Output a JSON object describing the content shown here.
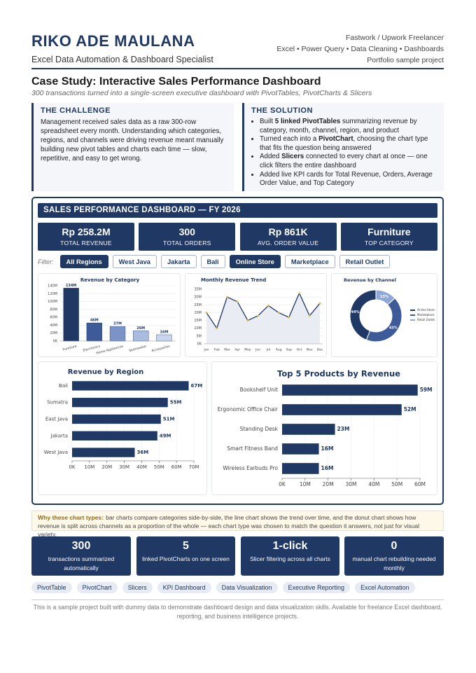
{
  "header": {
    "name": "RIKO ADE MAULANA",
    "tagline": "Excel Data Automation & Dashboard Specialist",
    "meta": [
      "Fastwork / Upwork Freelancer",
      "Excel • Power Query • Data Cleaning • Dashboards",
      "Portfolio sample project"
    ]
  },
  "case_study": {
    "title": "Case Study: Interactive Sales Performance Dashboard",
    "subtitle": "300 transactions turned into a single-screen executive dashboard with PivotTables, PivotCharts & Slicers"
  },
  "challenge": {
    "heading": "THE CHALLENGE",
    "text": "Management received sales data as a raw 300-row spreadsheet every month. Understanding which categories, regions, and channels were driving revenue meant manually building new pivot tables and charts each time — slow, repetitive, and easy to get wrong."
  },
  "solution": {
    "heading": "THE SOLUTION",
    "bullets": [
      [
        "Built ",
        "5 linked PivotTables",
        " summarizing revenue by category, month, channel, region, and product"
      ],
      [
        "Turned each into a ",
        "PivotChart",
        ", choosing the chart type that fits the question being answered"
      ],
      [
        "Added ",
        "Slicers",
        " connected to every chart at once — one click filters the entire dashboard"
      ],
      [
        "Added live KPI cards for Total Revenue, Orders, Average Order Value, and Top Category"
      ]
    ]
  },
  "dashboard": {
    "title": "SALES PERFORMANCE DASHBOARD — FY 2026",
    "kpis": [
      {
        "value": "Rp 258.2M",
        "label": "TOTAL REVENUE"
      },
      {
        "value": "300",
        "label": "TOTAL ORDERS"
      },
      {
        "value": "Rp 861K",
        "label": "AVG. ORDER VALUE"
      },
      {
        "value": "Furniture",
        "label": "TOP CATEGORY"
      }
    ],
    "filter_label": "Filter:",
    "filters": [
      {
        "label": "All Regions",
        "active": true
      },
      {
        "label": "West Java",
        "active": false
      },
      {
        "label": "Jakarta",
        "active": false
      },
      {
        "label": "Bali",
        "active": false
      },
      {
        "label": "Online Store",
        "active": true
      },
      {
        "label": "Marketplace",
        "active": false
      },
      {
        "label": "Retail Outlet",
        "active": false
      }
    ]
  },
  "chart_data": [
    {
      "type": "bar",
      "horizontal": false,
      "title": "Revenue by Category",
      "categories": [
        "Furniture",
        "Electronics",
        "Home Appliances",
        "Sportswear",
        "Accessories"
      ],
      "values": [
        134,
        46,
        37,
        26,
        16
      ],
      "value_labels": [
        "134M",
        "46M",
        "37M",
        "26M",
        "16M"
      ],
      "colors": [
        "#1f3864",
        "#3d5a99",
        "#7b93c6",
        "#a9bbdf",
        "#c9d5ee"
      ],
      "ylim": [
        0,
        140
      ],
      "yticks": [
        {
          "value": 0,
          "label": "0K"
        },
        {
          "value": 20,
          "label": "20M"
        },
        {
          "value": 40,
          "label": "40M"
        },
        {
          "value": 60,
          "label": "60M"
        },
        {
          "value": 80,
          "label": "80M"
        },
        {
          "value": 100,
          "label": "100M"
        },
        {
          "value": 120,
          "label": "120M"
        },
        {
          "value": 140,
          "label": "140M"
        }
      ],
      "grid": true
    },
    {
      "type": "line",
      "title": "Monthly Revenue Trend",
      "categories": [
        "Jan",
        "Feb",
        "Mar",
        "Apr",
        "May",
        "Jun",
        "Jul",
        "Aug",
        "Sep",
        "Oct",
        "Nov",
        "Dec"
      ],
      "values": [
        20,
        10,
        30,
        27,
        15,
        18,
        24.5,
        20,
        17,
        32.5,
        18,
        26
      ],
      "color": "#1f3864",
      "marker_color": "#e0b84a",
      "ylim": [
        0,
        35
      ],
      "yticks": [
        {
          "value": 0,
          "label": "0K"
        },
        {
          "value": 5,
          "label": "5M"
        },
        {
          "value": 10,
          "label": "10M"
        },
        {
          "value": 15,
          "label": "15M"
        },
        {
          "value": 20,
          "label": "20M"
        },
        {
          "value": 25,
          "label": "25M"
        },
        {
          "value": 30,
          "label": "30M"
        },
        {
          "value": 35,
          "label": "35M"
        }
      ],
      "grid": true
    },
    {
      "type": "pie",
      "donut": true,
      "title": "Revenue by Channel",
      "categories": [
        "Online Store",
        "Marketplace",
        "Retail Outlet"
      ],
      "values": [
        44,
        43,
        13
      ],
      "value_labels": [
        "44%",
        "43%",
        "13%"
      ],
      "colors": [
        "#1f3864",
        "#3d5a99",
        "#8fa8d8"
      ],
      "legend": "right"
    },
    {
      "type": "bar",
      "horizontal": true,
      "title": "Revenue by Region",
      "categories": [
        "Bali",
        "Sumatra",
        "East Java",
        "Jakarta",
        "West Java"
      ],
      "values": [
        67,
        55,
        51,
        49,
        36
      ],
      "value_labels": [
        "67M",
        "55M",
        "51M",
        "49M",
        "36M"
      ],
      "color": "#1f3864",
      "xlim": [
        0,
        70
      ],
      "xticks": [
        {
          "value": 0,
          "label": "0K"
        },
        {
          "value": 10,
          "label": "10M"
        },
        {
          "value": 20,
          "label": "20M"
        },
        {
          "value": 30,
          "label": "30M"
        },
        {
          "value": 40,
          "label": "40M"
        },
        {
          "value": 50,
          "label": "50M"
        },
        {
          "value": 60,
          "label": "60M"
        },
        {
          "value": 70,
          "label": "70M"
        }
      ],
      "grid": true
    },
    {
      "type": "bar",
      "horizontal": true,
      "title": "Top 5 Products by Revenue",
      "categories": [
        "Bookshelf Unit",
        "Ergonomic Office Chair",
        "Standing Desk",
        "Smart Fitness Band",
        "Wireless Earbuds Pro"
      ],
      "values": [
        59,
        52,
        23,
        16,
        16
      ],
      "value_labels": [
        "59M",
        "52M",
        "23M",
        "16M",
        "16M"
      ],
      "color": "#1f3864",
      "xlim": [
        0,
        60
      ],
      "xticks": [
        {
          "value": 0,
          "label": "0K"
        },
        {
          "value": 10,
          "label": "10M"
        },
        {
          "value": 20,
          "label": "20M"
        },
        {
          "value": 30,
          "label": "30M"
        },
        {
          "value": 40,
          "label": "40M"
        },
        {
          "value": 50,
          "label": "50M"
        },
        {
          "value": 60,
          "label": "60M"
        }
      ],
      "grid": true
    }
  ],
  "note": {
    "lead": "Why these chart types:",
    "text": "bar charts compare categories side-by-side, the line chart shows the trend over time, and the donut chart shows how revenue is split across channels as a proportion of the whole — each chart type was chosen to match the question it answers, not just for visual variety."
  },
  "stats": [
    {
      "value": "300",
      "label": "transactions summarized automatically"
    },
    {
      "value": "5",
      "label": "linked PivotCharts on one screen"
    },
    {
      "value": "1-click",
      "label": "Slicer filtering across all charts"
    },
    {
      "value": "0",
      "label": "manual chart rebuilding needed monthly"
    }
  ],
  "tags": [
    "PivotTable",
    "PivotChart",
    "Slicers",
    "KPI Dashboard",
    "Data Visualization",
    "Executive Reporting",
    "Excel Automation"
  ],
  "footer": "This is a sample project built with dummy data to demonstrate dashboard design and data visualization skills. Available for freelance Excel dashboard, reporting, and business intelligence projects."
}
